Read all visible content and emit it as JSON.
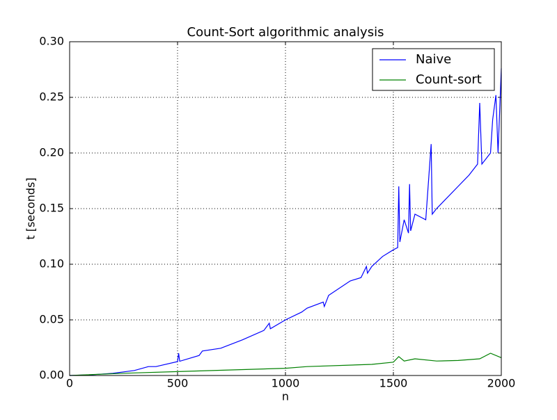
{
  "chart_data": {
    "type": "line",
    "title": "Count-Sort algorithmic analysis",
    "x_label": "n",
    "y_label": "t [seconds]",
    "xlim": [
      0,
      2000
    ],
    "xticks": [
      0,
      500,
      1000,
      1500,
      2000
    ],
    "ylim": [
      0,
      0.3
    ],
    "yticks": [
      {
        "value": 0,
        "label": "0.00"
      },
      0.05,
      {
        "value": 0.1,
        "label": "0.10"
      },
      0.15,
      {
        "value": 0.2,
        "label": "0.20"
      },
      0.25,
      {
        "value": 0.3,
        "label": "0.30"
      }
    ],
    "grid": true,
    "legend": "upper right",
    "series": [
      {
        "name": "Naive",
        "color": "#0000ff",
        "x": [
          0,
          100,
          200,
          300,
          365,
          400,
          500,
          505,
          510,
          600,
          615,
          700,
          800,
          900,
          925,
          930,
          1000,
          1075,
          1100,
          1175,
          1180,
          1200,
          1300,
          1350,
          1375,
          1380,
          1400,
          1450,
          1500,
          1520,
          1525,
          1530,
          1550,
          1570,
          1575,
          1580,
          1600,
          1650,
          1675,
          1680,
          1700,
          1800,
          1850,
          1890,
          1900,
          1910,
          1950,
          1960,
          1975,
          1985,
          2000
        ],
        "values": [
          0,
          0.0006,
          0.002,
          0.0045,
          0.008,
          0.008,
          0.0125,
          0.02,
          0.0128,
          0.018,
          0.022,
          0.0245,
          0.032,
          0.0405,
          0.047,
          0.042,
          0.05,
          0.057,
          0.0605,
          0.066,
          0.062,
          0.072,
          0.085,
          0.088,
          0.098,
          0.092,
          0.098,
          0.107,
          0.113,
          0.115,
          0.17,
          0.12,
          0.14,
          0.128,
          0.172,
          0.13,
          0.145,
          0.14,
          0.208,
          0.145,
          0.15,
          0.17,
          0.18,
          0.19,
          0.245,
          0.19,
          0.2,
          0.23,
          0.252,
          0.2,
          0.276
        ]
      },
      {
        "name": "Count-sort",
        "color": "#008000",
        "x": [
          0,
          250,
          500,
          750,
          1000,
          1100,
          1400,
          1500,
          1525,
          1550,
          1600,
          1700,
          1800,
          1900,
          1950,
          2000
        ],
        "values": [
          0,
          0.002,
          0.0035,
          0.005,
          0.0065,
          0.008,
          0.01,
          0.012,
          0.017,
          0.013,
          0.015,
          0.013,
          0.0135,
          0.015,
          0.02,
          0.016
        ]
      }
    ]
  }
}
